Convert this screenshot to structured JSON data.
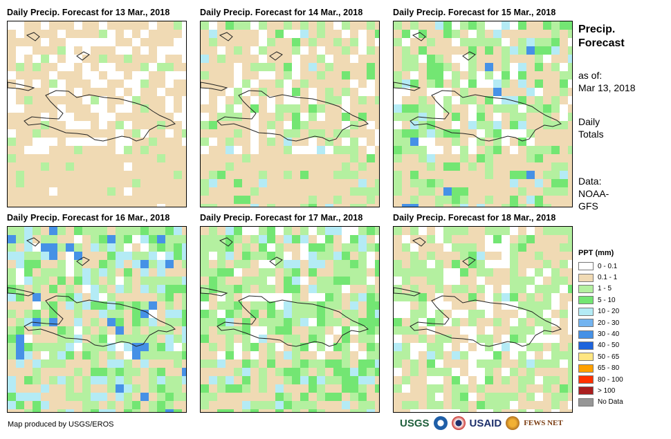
{
  "panels": [
    {
      "title": "Daily Precip. Forecast for 13 Mar., 2018"
    },
    {
      "title": "Daily Precip. Forecast for 14 Mar., 2018"
    },
    {
      "title": "Daily Precip. Forecast for 15 Mar., 2018"
    },
    {
      "title": "Daily Precip. Forecast for 16 Mar., 2018"
    },
    {
      "title": "Daily Precip. Forecast for 17 Mar., 2018"
    },
    {
      "title": "Daily Precip. Forecast for 18 Mar., 2018"
    }
  ],
  "sidebar": {
    "title_line1": "Precip.",
    "title_line2": "Forecast",
    "asof_label": "as of:",
    "asof_date": "Mar 13, 2018",
    "totals_line1": "Daily",
    "totals_line2": "Totals",
    "data_line1": "Data:",
    "data_line2": "NOAA-",
    "data_line3": "GFS"
  },
  "legend": {
    "title": "PPT (mm)",
    "items": [
      {
        "label": "0 - 0.1",
        "color": "#ffffff"
      },
      {
        "label": "0.1 - 1",
        "color": "#f0dab4"
      },
      {
        "label": "1 - 5",
        "color": "#b4f0a0"
      },
      {
        "label": "5 - 10",
        "color": "#73e673"
      },
      {
        "label": "10 - 20",
        "color": "#b4ebf5"
      },
      {
        "label": "20 - 30",
        "color": "#73b4f0"
      },
      {
        "label": "30 - 40",
        "color": "#4691e6"
      },
      {
        "label": "40 - 50",
        "color": "#1e64dc"
      },
      {
        "label": "50 - 65",
        "color": "#ffe682"
      },
      {
        "label": "65 - 80",
        "color": "#ffa000"
      },
      {
        "label": "80 - 100",
        "color": "#ff3200"
      },
      {
        "label": "> 100",
        "color": "#aa1e1e"
      },
      {
        "label": "No Data",
        "color": "#969696"
      }
    ]
  },
  "footer": {
    "credit": "Map produced by USGS/EROS",
    "logo_usgs": "USGS",
    "logo_usaid": "USAID",
    "logo_fews": "FEWS NET"
  }
}
